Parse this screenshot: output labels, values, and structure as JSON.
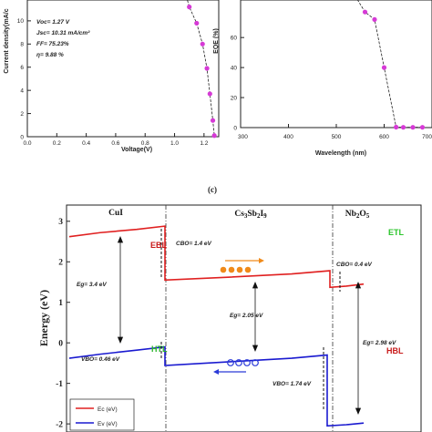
{
  "chart_data": [
    {
      "type": "line",
      "xlabel": "Voltage(V)",
      "ylabel": "Current density(mA/c",
      "xlim": [
        0,
        1.3
      ],
      "ylim": [
        0,
        11.8
      ],
      "xticks": [
        "0.0",
        "0.2",
        "0.4",
        "0.6",
        "0.8",
        "1.0",
        "1.2"
      ],
      "yticks": [
        "0",
        "2",
        "4",
        "6",
        "8",
        "10"
      ],
      "x": [
        1.1,
        1.15,
        1.19,
        1.22,
        1.24,
        1.26,
        1.27
      ],
      "y": [
        11.2,
        9.8,
        8.0,
        5.9,
        3.7,
        1.4,
        0.1
      ],
      "marker_color": "#d63ad6",
      "annotations": [
        "Voc= 1.27 V",
        "Jsc= 10.31 mA/cm²",
        "FF= 75.23%",
        "η= 9.88 %"
      ]
    },
    {
      "type": "line",
      "xlabel": "Wavelength (nm)",
      "ylabel": "EQE (%)",
      "xlim": [
        300,
        700
      ],
      "ylim": [
        0,
        85
      ],
      "xticks": [
        "300",
        "400",
        "500",
        "600",
        "700"
      ],
      "yticks": [
        "0",
        "20",
        "40",
        "60"
      ],
      "x": [
        560,
        580,
        600,
        625,
        640,
        660,
        680
      ],
      "y": [
        77,
        72,
        40,
        0.3,
        0.2,
        0.2,
        0.2
      ],
      "marker_color": "#d63ad6"
    },
    {
      "type": "line",
      "panel_label": "(c)",
      "ylabel": "Energy (eV)",
      "ylim": [
        -2.2,
        3.4
      ],
      "yticks": [
        "-2",
        "-1",
        "0",
        "1",
        "2",
        "3"
      ],
      "regions": [
        "CuI",
        "Cs3Sb2I9",
        "Nb2O5"
      ],
      "series": [
        {
          "name": "Ec (eV)",
          "color": "#e02020"
        },
        {
          "name": "Ev (eV)",
          "color": "#1a1ad0"
        }
      ],
      "annotations": {
        "ebl": "EBL",
        "cbo1": "CBO= 1.4 eV",
        "eg1": "Eg= 3.4 eV",
        "vbo1": "VBO= 0.46 eV",
        "htl": "HTL",
        "eg2": "Eg= 2.05 eV",
        "etl": "ETL",
        "cbo2": "CBO= 0.4 eV",
        "eg3": "Eg= 2.98 eV",
        "hbl": "HBL",
        "vbo2": "VBO= 1.74 eV"
      },
      "colors": {
        "ebl": "#c81a1a",
        "etl": "#2bc52b",
        "htl": "#2bb52b",
        "hbl": "#c81a1a",
        "electron": "#f08a1a",
        "hole": "#2a3ad8"
      }
    }
  ]
}
